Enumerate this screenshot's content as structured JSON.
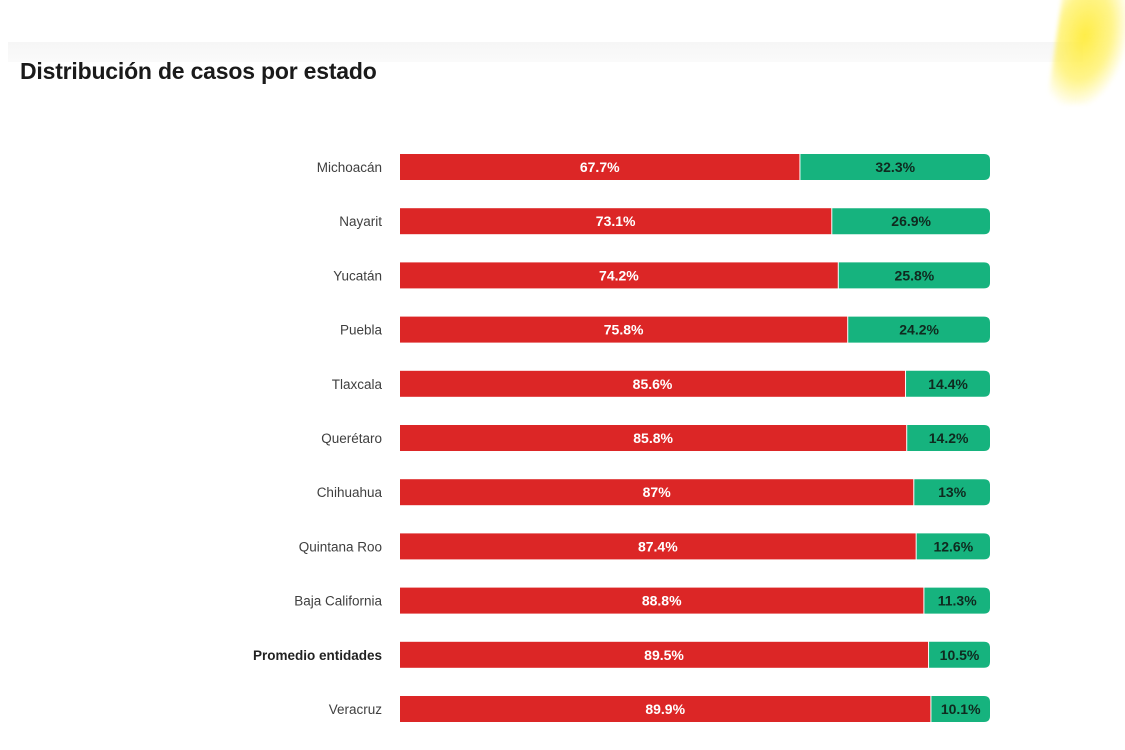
{
  "page": {
    "title": "Distribución de casos por estado"
  },
  "colors": {
    "primary": "#DC2626",
    "secondary": "#16B37E",
    "highlight": "#FFEC3C"
  },
  "chart_data": {
    "type": "bar",
    "orientation": "horizontal",
    "stacked": true,
    "title": "Distribución de casos por estado",
    "xlabel": "",
    "ylabel": "",
    "xlim": [
      0,
      100
    ],
    "grid": false,
    "legend": "none",
    "categories": [
      "Michoacán",
      "Nayarit",
      "Yucatán",
      "Puebla",
      "Tlaxcala",
      "Querétaro",
      "Chihuahua",
      "Quintana Roo",
      "Baja California",
      "Promedio entidades",
      "Veracruz"
    ],
    "highlighted_category": "Promedio entidades",
    "series": [
      {
        "name": "segment_1",
        "color": "#DC2626",
        "values": [
          67.7,
          73.1,
          74.2,
          75.8,
          85.6,
          85.8,
          87,
          87.4,
          88.8,
          89.5,
          89.9
        ],
        "labels": [
          "67.7%",
          "73.1%",
          "74.2%",
          "75.8%",
          "85.6%",
          "85.8%",
          "87%",
          "87.4%",
          "88.8%",
          "89.5%",
          "89.9%"
        ]
      },
      {
        "name": "segment_2",
        "color": "#16B37E",
        "values": [
          32.3,
          26.9,
          25.8,
          24.2,
          14.4,
          14.2,
          13,
          12.6,
          11.3,
          10.5,
          10.1
        ],
        "labels": [
          "32.3%",
          "26.9%",
          "25.8%",
          "24.2%",
          "14.4%",
          "14.2%",
          "13%",
          "12.6%",
          "11.3%",
          "10.5%",
          "10.1%"
        ]
      }
    ]
  }
}
